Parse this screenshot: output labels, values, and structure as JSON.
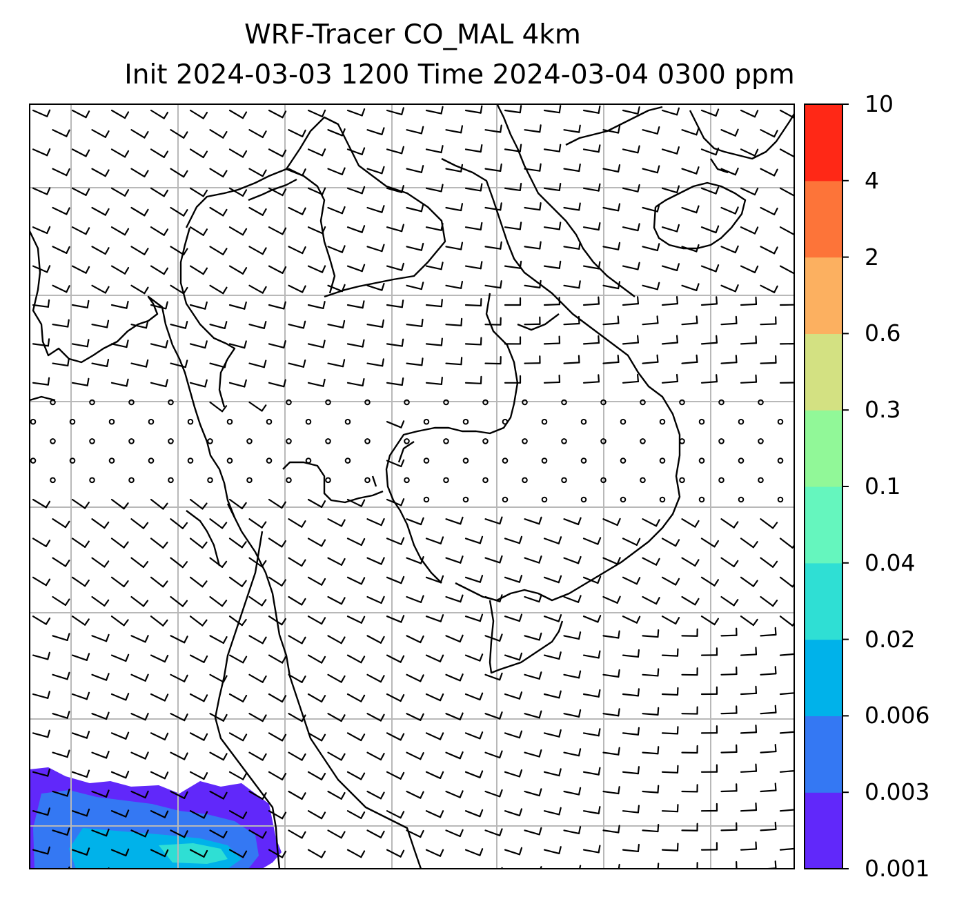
{
  "title": {
    "line1": "WRF-Tracer CO_MAL 4km",
    "line2": "Init 2024-03-03 1200 Time 2024-03-04 0300 ppm"
  },
  "colorbar": {
    "levels": [
      "0.001",
      "0.003",
      "0.006",
      "0.02",
      "0.04",
      "0.1",
      "0.3",
      "0.6",
      "2",
      "4",
      "10"
    ],
    "colors": [
      "#6128fa",
      "#3478f3",
      "#00b2ea",
      "#2fdfd4",
      "#65f6be",
      "#91f898",
      "#d3e182",
      "#fcb060",
      "#fd7439",
      "#ff2816"
    ]
  },
  "map": {
    "gridlines": true,
    "barbs": "wind-barbs",
    "tracer_field": "CO_MAL",
    "plume_location": "bottom-left"
  }
}
